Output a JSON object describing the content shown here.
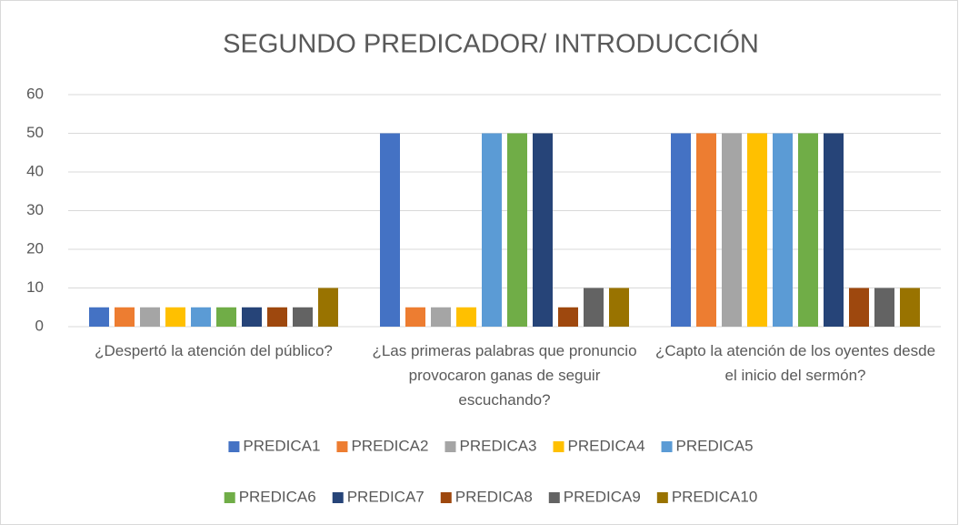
{
  "chart_data": {
    "type": "bar",
    "title": "SEGUNDO PREDICADOR/ INTRODUCCIÓN",
    "categories": [
      "¿Despertó la atención del público?",
      "¿Las primeras palabras que pronuncio provocaron ganas de seguir escuchando?",
      "¿Capto la atención de los oyentes desde el inicio del sermón?"
    ],
    "series": [
      {
        "name": "PREDICA1",
        "color": "#4472c4",
        "values": [
          5,
          50,
          50
        ]
      },
      {
        "name": "PREDICA2",
        "color": "#ed7d31",
        "values": [
          5,
          5,
          50
        ]
      },
      {
        "name": "PREDICA3",
        "color": "#a5a5a5",
        "values": [
          5,
          5,
          50
        ]
      },
      {
        "name": "PREDICA4",
        "color": "#ffc000",
        "values": [
          5,
          5,
          50
        ]
      },
      {
        "name": "PREDICA5",
        "color": "#5b9bd5",
        "values": [
          5,
          50,
          50
        ]
      },
      {
        "name": "PREDICA6",
        "color": "#70ad47",
        "values": [
          5,
          50,
          50
        ]
      },
      {
        "name": "PREDICA7",
        "color": "#264478",
        "values": [
          5,
          50,
          50
        ]
      },
      {
        "name": "PREDICA8",
        "color": "#9e480e",
        "values": [
          5,
          5,
          10
        ]
      },
      {
        "name": "PREDICA9",
        "color": "#636363",
        "values": [
          5,
          10,
          10
        ]
      },
      {
        "name": "PREDICA10",
        "color": "#997300",
        "values": [
          10,
          10,
          10
        ]
      }
    ],
    "ylim": [
      0,
      60
    ],
    "yticks": [
      0,
      10,
      20,
      30,
      40,
      50,
      60
    ],
    "grid": true,
    "legend": "bottom"
  }
}
